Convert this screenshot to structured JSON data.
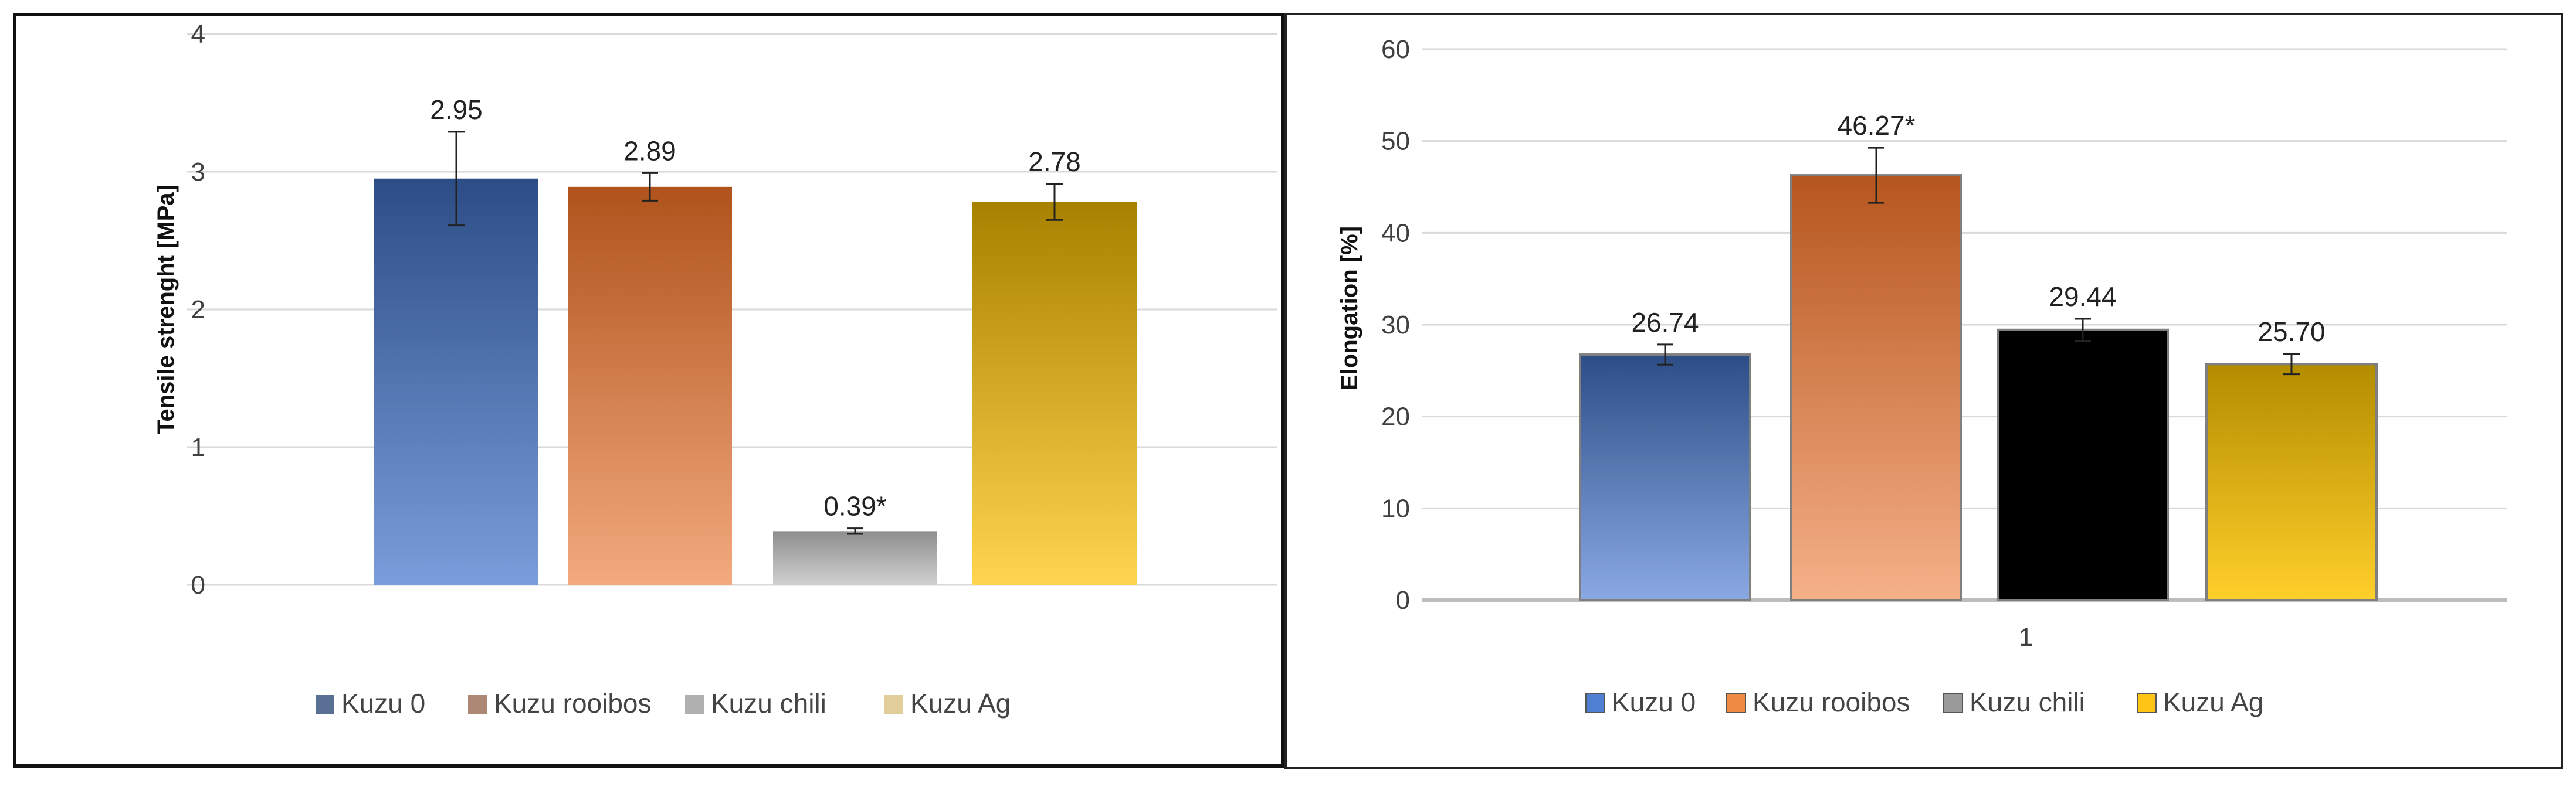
{
  "chart_data": [
    {
      "type": "bar",
      "categories": [
        "Kuzu 0",
        "Kuzu rooibos",
        "Kuzu chili",
        "Kuzu Ag"
      ],
      "values": [
        2.95,
        2.89,
        0.39,
        2.78
      ],
      "errors": [
        0.34,
        0.1,
        0.02,
        0.13
      ],
      "data_labels": [
        "2.95",
        "2.89",
        "0.39*",
        "2.78"
      ],
      "title": "",
      "xlabel": "",
      "ylabel": "Tensile strenght [MPa]",
      "ylim": [
        0,
        4
      ],
      "yticks": [
        "0",
        "1",
        "2",
        "3",
        "4"
      ],
      "xtick_labels": [],
      "grid": true,
      "legend": {
        "position": "bottom",
        "entries": [
          "Kuzu 0",
          "Kuzu rooibos",
          "Kuzu chili",
          "Kuzu Ag"
        ],
        "colors": [
          "#5a6f94",
          "#ad8874",
          "#b0b0b0",
          "#e2ce9a"
        ]
      },
      "bar_colors": [
        {
          "top": "#2c4d85",
          "bottom": "#7a9ddb"
        },
        {
          "top": "#b0531c",
          "bottom": "#f2aa7e"
        },
        {
          "top": "#8e8e8e",
          "bottom": "#d0d0d0"
        },
        {
          "top": "#a88100",
          "bottom": "#ffd54f"
        }
      ]
    },
    {
      "type": "bar",
      "categories": [
        "Kuzu 0",
        "Kuzu rooibos",
        "Kuzu chili",
        "Kuzu Ag"
      ],
      "values": [
        26.74,
        46.27,
        29.44,
        25.7
      ],
      "errors": [
        1.1,
        3.0,
        1.2,
        1.1
      ],
      "data_labels": [
        "26.74",
        "46.27*",
        "29.44",
        "25.70"
      ],
      "title": "",
      "xlabel": "",
      "ylabel": "Elongation [%]",
      "ylim": [
        0,
        60
      ],
      "yticks": [
        "0",
        "10",
        "20",
        "30",
        "40",
        "50",
        "60"
      ],
      "xtick_labels": [
        "1"
      ],
      "grid": true,
      "legend": {
        "position": "bottom",
        "entries": [
          "Kuzu 0",
          "Kuzu rooibos",
          "Kuzu chili",
          "Kuzu Ag"
        ],
        "colors": [
          "#4f7fd1",
          "#ee8a42",
          "#9a9a9a",
          "#ffc414"
        ]
      },
      "bar_colors": [
        {
          "top": "#2c4d85",
          "bottom": "#8aa9e3"
        },
        {
          "top": "#b6561e",
          "bottom": "#f5b088"
        },
        {
          "top": "#000000",
          "bottom": "#000000"
        },
        {
          "top": "#b38c00",
          "bottom": "#ffcf2a"
        }
      ]
    }
  ]
}
